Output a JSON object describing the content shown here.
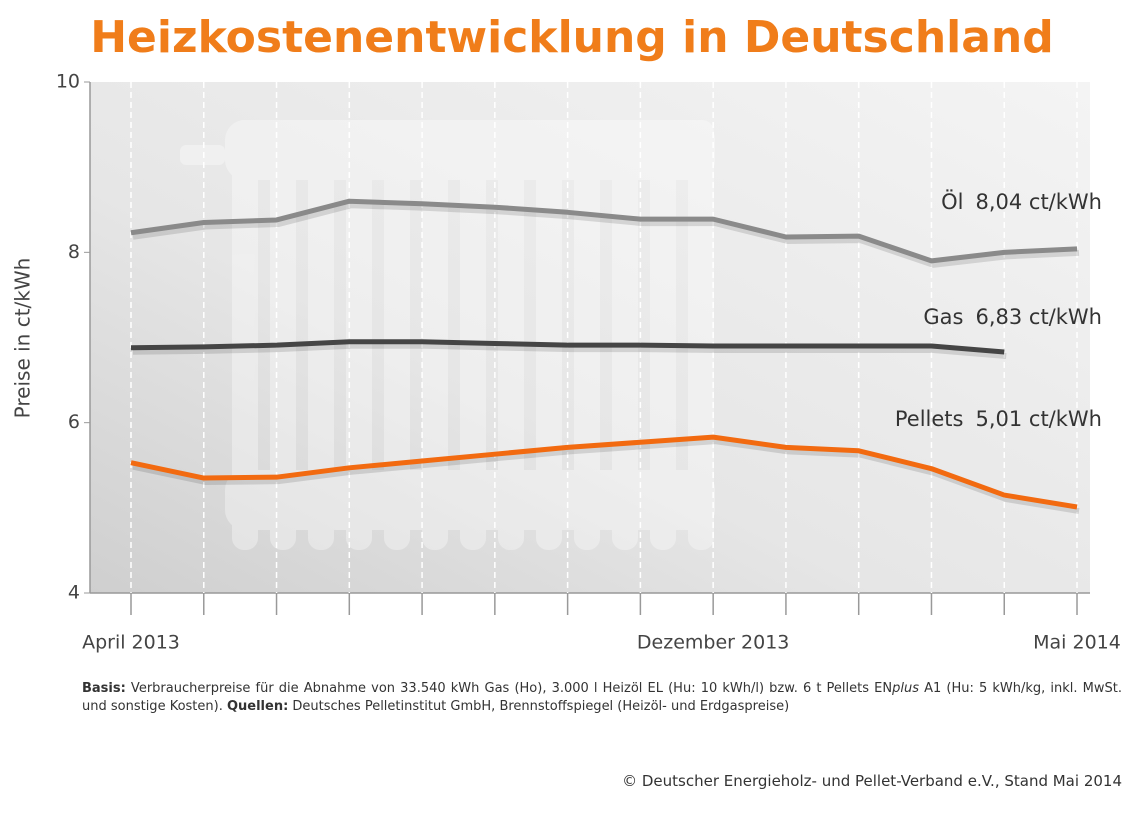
{
  "chart_data": {
    "type": "line",
    "title": "Heizkostenentwicklung in Deutschland",
    "y_label": "Preise in ct/kWh",
    "categories": [
      "April 2013",
      null,
      null,
      null,
      null,
      null,
      null,
      null,
      "Dezember 2013",
      null,
      null,
      null,
      null,
      "Mai 2014"
    ],
    "ylim": [
      4,
      10
    ],
    "yticks": [
      4,
      6,
      8,
      10
    ],
    "grid": true,
    "series": [
      {
        "name": "Öl",
        "end_label": "8,04 ct/kWh",
        "color": "#8a8a8a",
        "values": [
          8.23,
          8.35,
          8.38,
          8.6,
          8.57,
          8.53,
          8.47,
          8.39,
          8.39,
          8.18,
          8.19,
          7.9,
          8.0,
          8.04
        ]
      },
      {
        "name": "Gas",
        "end_label": "6,83 ct/kWh",
        "color": "#454545",
        "values": [
          6.88,
          6.89,
          6.91,
          6.95,
          6.95,
          6.93,
          6.91,
          6.91,
          6.9,
          6.9,
          6.9,
          6.9,
          6.83,
          null
        ]
      },
      {
        "name": "Pellets",
        "end_label": "5,01 ct/kWh",
        "color": "#f26a10",
        "values": [
          5.53,
          5.35,
          5.36,
          5.47,
          5.55,
          5.63,
          5.71,
          5.77,
          5.83,
          5.71,
          5.67,
          5.46,
          5.15,
          5.01
        ]
      }
    ]
  },
  "footnote": [
    {
      "text": "Basis:",
      "bold": true
    },
    {
      "text": " Verbraucherpreise für die Abnahme von 33.540 kWh Gas (Ho), 3.000 l Heizöl EL (Hu: 10 kWh/l) bzw. 6 t Pellets EN"
    },
    {
      "text": "plus",
      "italic": true
    },
    {
      "text": " A1 (Hu: 5 kWh/kg, inkl. MwSt. und sonstige Kosten). "
    },
    {
      "text": "Quellen:",
      "bold": true
    },
    {
      "text": " Deutsches Pelletinstitut GmbH, Brennstoffspiegel (Heizöl- und Erdgaspreise)"
    }
  ],
  "source": "© Deutscher Energieholz- und Pellet-Verband e.V., Stand Mai 2014"
}
